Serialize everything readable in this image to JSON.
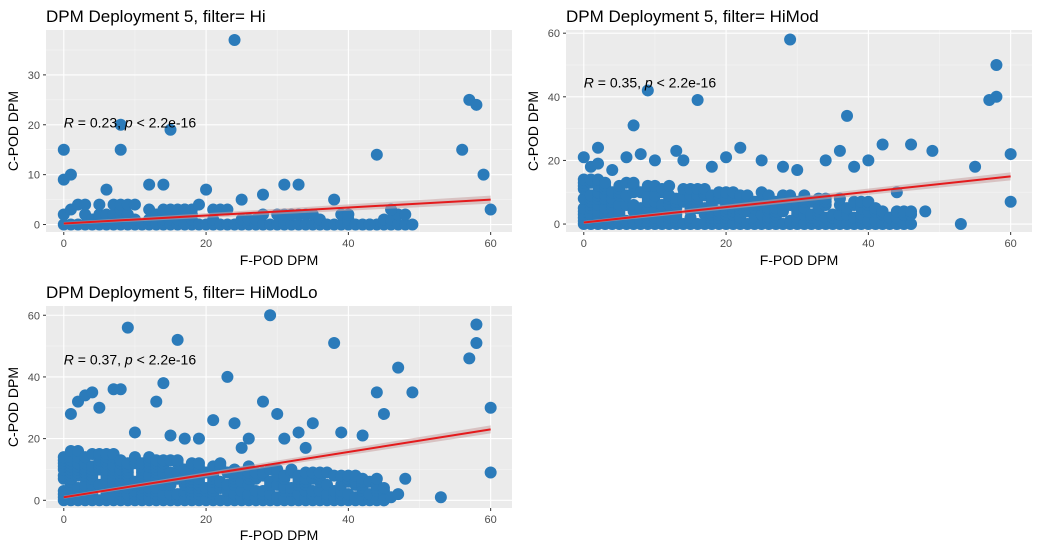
{
  "colors": {
    "panel_bg": "#ebebeb",
    "grid_major": "#ffffff",
    "grid_minor": "#f5f5f5",
    "point": "#2b7bba",
    "line": "#e41a1c",
    "ribbon": "#c9a0a0"
  },
  "chart_data": [
    {
      "type": "scatter",
      "title": "DPM Deployment 5, filter= Hi",
      "xlabel": "F-POD DPM",
      "ylabel": "C-POD DPM",
      "xlim": [
        -2.5,
        63
      ],
      "ylim": [
        -1.5,
        39
      ],
      "xticks": [
        0,
        20,
        40,
        60
      ],
      "yticks": [
        0,
        10,
        20,
        30
      ],
      "grid": true,
      "annotation": {
        "r_label": "R",
        "r_value": " = 0.23, ",
        "p_label": "p",
        "p_value": " < 2.2e-16",
        "x": 0,
        "y": 19.5
      },
      "regression": {
        "x": [
          0,
          60
        ],
        "y": [
          0.2,
          5.0
        ]
      },
      "outliers": [
        [
          0,
          15
        ],
        [
          0,
          9
        ],
        [
          1,
          10
        ],
        [
          6,
          7
        ],
        [
          8,
          20
        ],
        [
          8,
          15
        ],
        [
          12,
          8
        ],
        [
          14,
          8
        ],
        [
          15,
          19
        ],
        [
          17,
          3
        ],
        [
          19,
          4
        ],
        [
          20,
          7
        ],
        [
          24,
          37
        ],
        [
          25,
          5
        ],
        [
          28,
          6
        ],
        [
          31,
          8
        ],
        [
          33,
          8
        ],
        [
          38,
          5
        ],
        [
          43,
          0
        ],
        [
          44,
          14
        ],
        [
          46,
          3
        ],
        [
          49,
          0
        ],
        [
          56,
          15
        ],
        [
          57,
          25
        ],
        [
          58,
          24
        ],
        [
          59,
          10
        ],
        [
          60,
          3
        ]
      ],
      "cluster": {
        "x_max": 48,
        "y_max": 4,
        "density": 0.55
      }
    },
    {
      "type": "scatter",
      "title": "DPM Deployment 5, filter= HiMod",
      "xlabel": "F-POD DPM",
      "ylabel": "C-POD DPM",
      "xlim": [
        -2.5,
        63
      ],
      "ylim": [
        -2.5,
        61
      ],
      "xticks": [
        0,
        20,
        40,
        60
      ],
      "yticks": [
        0,
        20,
        40,
        60
      ],
      "grid": true,
      "annotation": {
        "r_label": "R",
        "r_value": " = 0.35, ",
        "p_label": "p",
        "p_value": " < 2.2e-16",
        "x": 0,
        "y": 43
      },
      "regression": {
        "x": [
          0,
          60
        ],
        "y": [
          0.5,
          15.0
        ]
      },
      "outliers": [
        [
          0,
          21
        ],
        [
          1,
          18
        ],
        [
          2,
          24
        ],
        [
          2,
          19
        ],
        [
          4,
          17
        ],
        [
          6,
          21
        ],
        [
          7,
          31
        ],
        [
          8,
          22
        ],
        [
          9,
          42
        ],
        [
          10,
          20
        ],
        [
          13,
          23
        ],
        [
          14,
          20
        ],
        [
          16,
          39
        ],
        [
          18,
          18
        ],
        [
          20,
          21
        ],
        [
          22,
          24
        ],
        [
          25,
          20
        ],
        [
          28,
          18
        ],
        [
          29,
          58
        ],
        [
          30,
          17
        ],
        [
          34,
          20
        ],
        [
          36,
          23
        ],
        [
          37,
          34
        ],
        [
          38,
          18
        ],
        [
          40,
          20
        ],
        [
          42,
          25
        ],
        [
          44,
          10
        ],
        [
          46,
          25
        ],
        [
          48,
          4
        ],
        [
          49,
          23
        ],
        [
          53,
          0
        ],
        [
          55,
          18
        ],
        [
          57,
          39
        ],
        [
          58,
          40
        ],
        [
          58,
          50
        ],
        [
          60,
          22
        ],
        [
          60,
          7
        ]
      ],
      "cluster": {
        "x_max": 46,
        "y_max": 14,
        "density": 0.6
      }
    },
    {
      "type": "scatter",
      "title": "DPM Deployment 5, filter= HiModLo",
      "xlabel": "F-POD DPM",
      "ylabel": "C-POD DPM",
      "xlim": [
        -2.5,
        63
      ],
      "ylim": [
        -2.5,
        63
      ],
      "xticks": [
        0,
        20,
        40,
        60
      ],
      "yticks": [
        0,
        20,
        40,
        60
      ],
      "grid": true,
      "annotation": {
        "r_label": "R",
        "r_value": " = 0.37, ",
        "p_label": "p",
        "p_value": " < 2.2e-16",
        "x": 0,
        "y": 44
      },
      "regression": {
        "x": [
          0,
          60
        ],
        "y": [
          1.0,
          23.0
        ]
      },
      "outliers": [
        [
          1,
          28
        ],
        [
          2,
          32
        ],
        [
          3,
          34
        ],
        [
          4,
          35
        ],
        [
          5,
          30
        ],
        [
          7,
          36
        ],
        [
          8,
          36
        ],
        [
          9,
          56
        ],
        [
          10,
          22
        ],
        [
          13,
          32
        ],
        [
          14,
          38
        ],
        [
          15,
          21
        ],
        [
          16,
          52
        ],
        [
          17,
          20
        ],
        [
          19,
          20
        ],
        [
          21,
          26
        ],
        [
          23,
          40
        ],
        [
          24,
          25
        ],
        [
          25,
          17
        ],
        [
          26,
          20
        ],
        [
          28,
          32
        ],
        [
          29,
          60
        ],
        [
          30,
          28
        ],
        [
          31,
          20
        ],
        [
          33,
          22
        ],
        [
          34,
          17
        ],
        [
          35,
          25
        ],
        [
          38,
          51
        ],
        [
          39,
          22
        ],
        [
          42,
          21
        ],
        [
          44,
          35
        ],
        [
          45,
          0
        ],
        [
          45,
          28
        ],
        [
          46,
          1
        ],
        [
          47,
          2
        ],
        [
          47,
          43
        ],
        [
          48,
          7
        ],
        [
          49,
          35
        ],
        [
          53,
          1
        ],
        [
          57,
          46
        ],
        [
          58,
          51
        ],
        [
          58,
          57
        ],
        [
          60,
          30
        ],
        [
          60,
          9
        ]
      ],
      "cluster": {
        "x_max": 45,
        "y_max": 16,
        "density": 0.7
      }
    }
  ]
}
